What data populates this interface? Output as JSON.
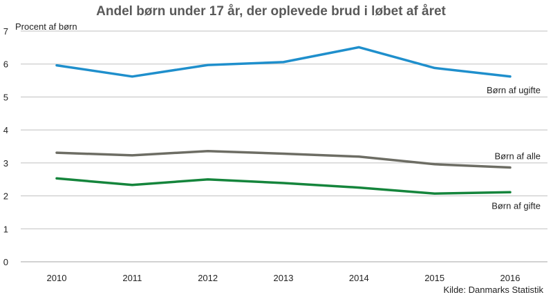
{
  "chart_data": {
    "type": "line",
    "title": "Andel børn under 17 år, der oplevede brud i løbet af året",
    "ylabel": "Procent  af børn",
    "xlabel": "",
    "x": [
      "2010",
      "2011",
      "2012",
      "2013",
      "2014",
      "2015",
      "2016"
    ],
    "ylim": [
      0,
      7
    ],
    "yticks": [
      "0",
      "1",
      "2",
      "3",
      "4",
      "5",
      "6",
      "7"
    ],
    "grid": true,
    "series": [
      {
        "name": "Børn af ugifte",
        "color": "#1f8fcc",
        "values": [
          5.96,
          5.62,
          5.97,
          6.06,
          6.51,
          5.88,
          5.62
        ]
      },
      {
        "name": "Børn af alle",
        "color": "#6d6d64",
        "values": [
          3.31,
          3.23,
          3.36,
          3.28,
          3.19,
          2.96,
          2.86
        ]
      },
      {
        "name": "Børn af gifte",
        "color": "#15853c",
        "values": [
          2.53,
          2.33,
          2.5,
          2.39,
          2.25,
          2.07,
          2.11
        ]
      }
    ],
    "source": "Kilde:  Danmarks  Statistik"
  }
}
